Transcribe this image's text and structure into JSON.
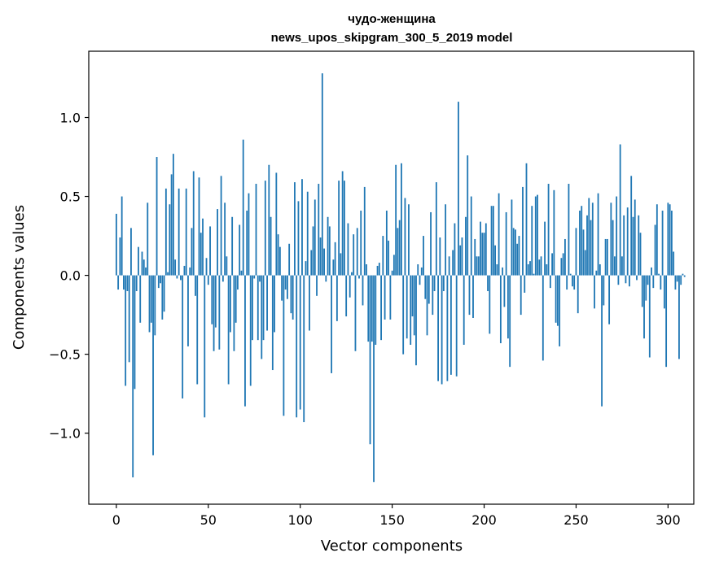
{
  "chart_data": {
    "type": "bar",
    "title": "чудо-женщина",
    "subtitle": "news_upos_skipgram_300_5_2019 model",
    "xlabel": "Vector components",
    "ylabel": "Components values",
    "xlim": [
      -15,
      314
    ],
    "ylim": [
      -1.45,
      1.42
    ],
    "xticks": [
      0,
      50,
      100,
      150,
      200,
      250,
      300
    ],
    "xtick_labels": [
      "0",
      "50",
      "100",
      "150",
      "200",
      "250",
      "300"
    ],
    "yticks": [
      -1.0,
      -0.5,
      0.0,
      0.5,
      1.0
    ],
    "ytick_labels": [
      "−1.0",
      "−0.5",
      "0.0",
      "0.5",
      "1.0"
    ],
    "grid": false,
    "bar_color": "#1f77b4",
    "series": [
      {
        "name": "components",
        "values": [
          0.39,
          -0.09,
          0.24,
          0.5,
          -0.09,
          -0.7,
          -0.1,
          -0.55,
          0.3,
          -1.28,
          -0.72,
          -0.1,
          0.18,
          -0.3,
          0.15,
          0.1,
          0.05,
          0.46,
          -0.36,
          -0.3,
          -1.14,
          -0.38,
          0.75,
          -0.08,
          -0.05,
          -0.28,
          -0.23,
          0.55,
          0.02,
          0.45,
          0.64,
          0.77,
          0.1,
          -0.02,
          0.55,
          -0.03,
          -0.78,
          0.06,
          0.55,
          -0.45,
          0.05,
          0.3,
          0.66,
          -0.13,
          -0.69,
          0.62,
          0.27,
          0.36,
          -0.9,
          0.11,
          -0.06,
          0.31,
          -0.31,
          -0.48,
          -0.33,
          0.42,
          -0.47,
          0.63,
          -0.04,
          0.46,
          0.12,
          -0.69,
          -0.36,
          0.37,
          -0.48,
          -0.3,
          -0.09,
          0.32,
          0.03,
          0.86,
          -0.83,
          0.41,
          0.52,
          -0.7,
          -0.41,
          -0.02,
          0.58,
          -0.41,
          -0.04,
          -0.53,
          -0.41,
          0.6,
          -0.35,
          0.7,
          0.37,
          -0.6,
          -0.36,
          0.65,
          0.26,
          0.18,
          -0.16,
          -0.89,
          -0.09,
          -0.15,
          0.2,
          -0.24,
          -0.28,
          0.59,
          -0.9,
          0.47,
          -0.85,
          0.61,
          -0.93,
          0.09,
          0.53,
          -0.35,
          0.16,
          0.31,
          0.48,
          -0.13,
          0.58,
          0.24,
          1.28,
          0.17,
          -0.04,
          0.37,
          0.31,
          -0.62,
          0.1,
          0.21,
          -0.29,
          0.6,
          0.14,
          0.66,
          0.6,
          -0.26,
          0.33,
          -0.14,
          0.02,
          0.26,
          -0.48,
          0.3,
          -0.02,
          0.41,
          -0.19,
          0.56,
          0.07,
          -0.42,
          -1.07,
          -0.42,
          -1.31,
          -0.44,
          0.06,
          0.08,
          -0.41,
          0.25,
          -0.28,
          0.41,
          0.22,
          -0.28,
          0.03,
          0.13,
          0.7,
          0.3,
          0.35,
          0.71,
          -0.5,
          0.49,
          -0.4,
          0.45,
          -0.44,
          -0.26,
          -0.38,
          -0.57,
          0.07,
          -0.06,
          0.05,
          0.25,
          -0.15,
          -0.38,
          -0.18,
          0.4,
          -0.25,
          -0.1,
          0.59,
          -0.67,
          0.24,
          -0.69,
          -0.1,
          0.45,
          -0.67,
          0.12,
          -0.63,
          0.16,
          0.33,
          -0.64,
          1.1,
          0.19,
          0.24,
          -0.44,
          0.37,
          0.76,
          -0.25,
          0.5,
          -0.27,
          0.23,
          0.12,
          0.12,
          0.34,
          0.27,
          0.27,
          0.33,
          -0.1,
          -0.37,
          0.44,
          0.44,
          0.19,
          0.07,
          0.52,
          -0.43,
          0.05,
          -0.2,
          0.4,
          -0.4,
          -0.58,
          0.48,
          0.3,
          0.29,
          0.2,
          0.25,
          -0.25,
          0.56,
          -0.11,
          0.71,
          0.07,
          0.09,
          0.44,
          0.01,
          0.5,
          0.51,
          0.1,
          0.12,
          -0.54,
          0.34,
          0.07,
          0.58,
          -0.08,
          0.14,
          0.54,
          -0.3,
          -0.32,
          -0.45,
          0.11,
          0.14,
          0.23,
          -0.09,
          0.58,
          0.01,
          -0.07,
          -0.09,
          0.3,
          -0.24,
          0.41,
          0.44,
          0.29,
          0.16,
          0.38,
          0.49,
          0.35,
          0.46,
          -0.21,
          0.03,
          0.52,
          0.07,
          -0.83,
          -0.19,
          0.23,
          0.23,
          -0.31,
          0.46,
          0.35,
          0.12,
          0.5,
          -0.06,
          0.83,
          0.12,
          0.38,
          -0.05,
          0.43,
          -0.07,
          0.63,
          0.37,
          0.48,
          -0.03,
          0.38,
          0.27,
          -0.2,
          -0.4,
          -0.16,
          -0.06,
          -0.52,
          0.05,
          -0.08,
          0.32,
          0.45,
          0.01,
          -0.09,
          0.41,
          -0.21,
          -0.58,
          0.46,
          0.45,
          0.41,
          0.15,
          -0.09,
          -0.04,
          -0.53,
          -0.06,
          0.01,
          -0.01
        ]
      }
    ]
  }
}
